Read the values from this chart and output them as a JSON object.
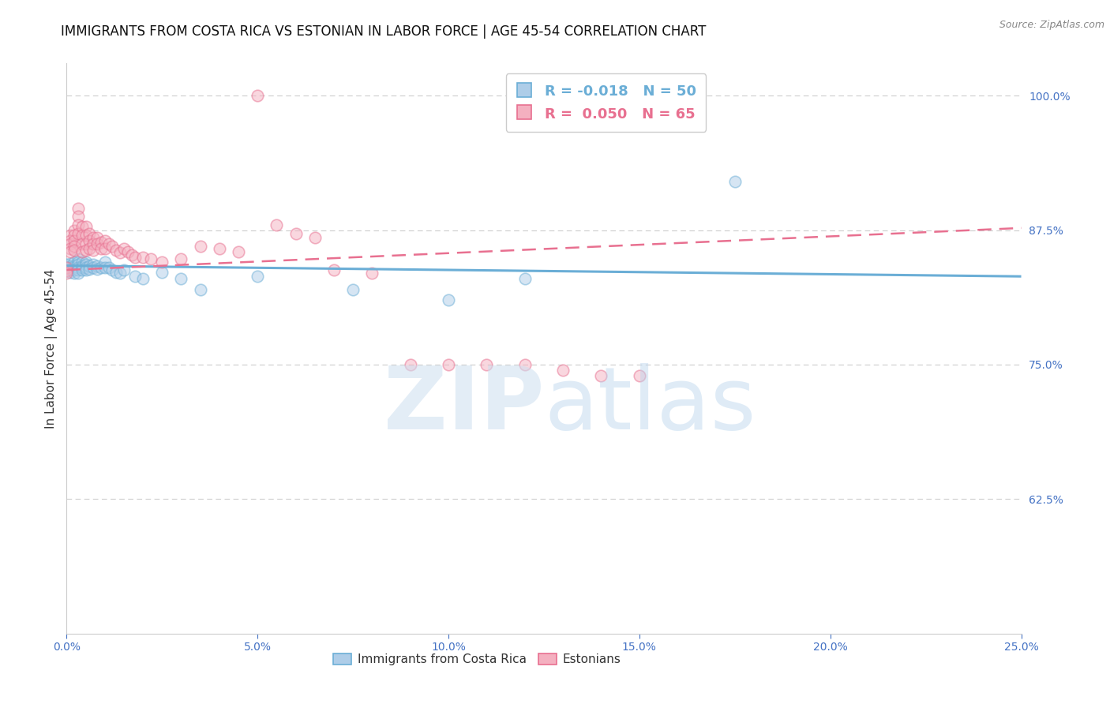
{
  "title": "IMMIGRANTS FROM COSTA RICA VS ESTONIAN IN LABOR FORCE | AGE 45-54 CORRELATION CHART",
  "source": "Source: ZipAtlas.com",
  "ylabel": "In Labor Force | Age 45-54",
  "xlim": [
    0.0,
    0.25
  ],
  "ylim": [
    0.5,
    1.03
  ],
  "yticks_right": [
    0.625,
    0.75,
    0.875,
    1.0
  ],
  "blue_color": "#6baed6",
  "blue_fill": "#aecde8",
  "pink_color": "#e87090",
  "pink_fill": "#f4b0c0",
  "trend_blue": [
    0.0,
    0.842,
    0.25,
    0.832
  ],
  "trend_pink": [
    0.0,
    0.838,
    0.25,
    0.877
  ],
  "blue_scatter_x": [
    0.0,
    0.0,
    0.001,
    0.001,
    0.001,
    0.001,
    0.001,
    0.002,
    0.002,
    0.002,
    0.002,
    0.002,
    0.003,
    0.003,
    0.003,
    0.003,
    0.003,
    0.003,
    0.004,
    0.004,
    0.004,
    0.004,
    0.005,
    0.005,
    0.005,
    0.005,
    0.006,
    0.006,
    0.007,
    0.007,
    0.008,
    0.008,
    0.009,
    0.01,
    0.01,
    0.011,
    0.012,
    0.013,
    0.014,
    0.015,
    0.018,
    0.02,
    0.025,
    0.03,
    0.035,
    0.05,
    0.075,
    0.1,
    0.12,
    0.175
  ],
  "blue_scatter_y": [
    0.84,
    0.843,
    0.844,
    0.842,
    0.84,
    0.838,
    0.836,
    0.845,
    0.842,
    0.84,
    0.838,
    0.835,
    0.848,
    0.845,
    0.843,
    0.84,
    0.838,
    0.835,
    0.845,
    0.842,
    0.84,
    0.838,
    0.845,
    0.843,
    0.84,
    0.838,
    0.842,
    0.839,
    0.843,
    0.84,
    0.842,
    0.839,
    0.84,
    0.845,
    0.84,
    0.84,
    0.838,
    0.836,
    0.835,
    0.838,
    0.832,
    0.83,
    0.836,
    0.83,
    0.82,
    0.832,
    0.82,
    0.81,
    0.83,
    0.92
  ],
  "pink_scatter_x": [
    0.0,
    0.0,
    0.0,
    0.001,
    0.001,
    0.001,
    0.001,
    0.001,
    0.002,
    0.002,
    0.002,
    0.002,
    0.002,
    0.003,
    0.003,
    0.003,
    0.003,
    0.004,
    0.004,
    0.004,
    0.004,
    0.005,
    0.005,
    0.005,
    0.005,
    0.006,
    0.006,
    0.006,
    0.007,
    0.007,
    0.007,
    0.008,
    0.008,
    0.009,
    0.009,
    0.01,
    0.01,
    0.011,
    0.012,
    0.013,
    0.014,
    0.015,
    0.016,
    0.017,
    0.018,
    0.02,
    0.022,
    0.025,
    0.03,
    0.035,
    0.04,
    0.045,
    0.05,
    0.055,
    0.06,
    0.065,
    0.07,
    0.08,
    0.09,
    0.1,
    0.11,
    0.12,
    0.13,
    0.14,
    0.15
  ],
  "pink_scatter_y": [
    0.84,
    0.837,
    0.835,
    0.87,
    0.865,
    0.862,
    0.858,
    0.855,
    0.875,
    0.87,
    0.865,
    0.86,
    0.856,
    0.895,
    0.888,
    0.88,
    0.872,
    0.878,
    0.87,
    0.862,
    0.855,
    0.878,
    0.87,
    0.862,
    0.856,
    0.872,
    0.865,
    0.858,
    0.868,
    0.862,
    0.856,
    0.868,
    0.862,
    0.864,
    0.858,
    0.865,
    0.858,
    0.862,
    0.86,
    0.856,
    0.854,
    0.858,
    0.855,
    0.852,
    0.85,
    0.85,
    0.848,
    0.845,
    0.848,
    0.86,
    0.858,
    0.855,
    1.0,
    0.88,
    0.872,
    0.868,
    0.838,
    0.835,
    0.75,
    0.75,
    0.75,
    0.75,
    0.745,
    0.74,
    0.74
  ],
  "background_color": "#ffffff",
  "grid_color": "#cccccc",
  "title_fontsize": 12,
  "tick_fontsize": 10,
  "marker_size": 110,
  "marker_alpha": 0.5,
  "marker_lw": 1.2
}
